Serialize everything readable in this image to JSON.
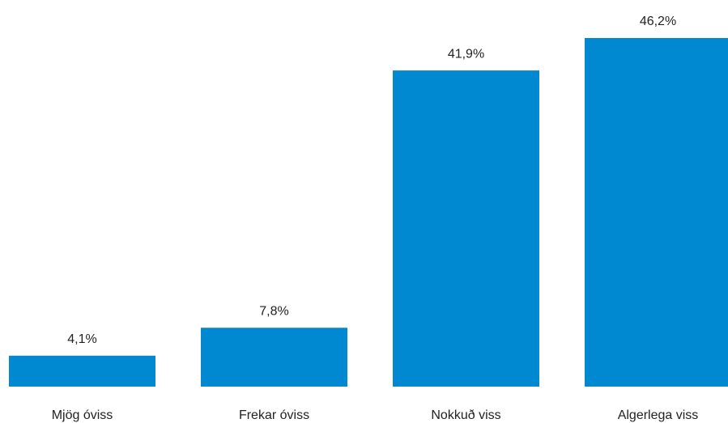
{
  "chart_data": {
    "type": "bar",
    "categories": [
      "Mjög óviss",
      "Frekar óviss",
      "Nokkuð viss",
      "Algerlega viss"
    ],
    "values": [
      4.1,
      7.8,
      41.9,
      46.2
    ],
    "value_labels": [
      "4,1%",
      "7,8%",
      "41,9%",
      "46,2%"
    ],
    "color": "#0088d1"
  }
}
